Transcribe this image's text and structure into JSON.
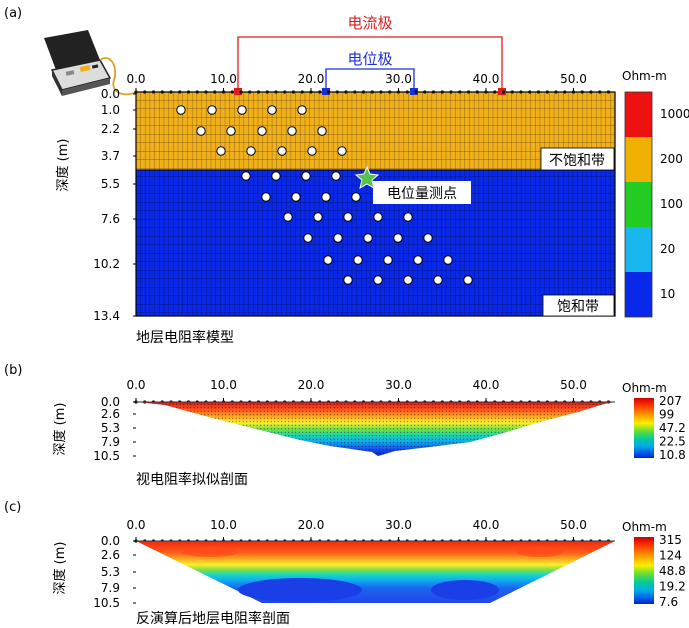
{
  "panel_a": {
    "label": "(a)",
    "current_electrode_label": "电流极",
    "potential_electrode_label": "电位极",
    "x_ticks": [
      "0.0",
      "10.0",
      "20.0",
      "30.0",
      "40.0",
      "50.0"
    ],
    "y_ticks": [
      "0.0",
      "1.0",
      "2.2",
      "3.7",
      "5.5",
      "7.6",
      "10.2",
      "13.4"
    ],
    "ylabel": "深度 (m)",
    "unsaturated_label": "不饱和带",
    "saturated_label": "饱和带",
    "measure_point_label": "电位量测点",
    "caption": "地层电阻率模型",
    "colorbar_unit": "Ohm-m",
    "colorbar_ticks": [
      "1000",
      "200",
      "100",
      "20",
      "10"
    ],
    "colorbar_colors": [
      "#ee1111",
      "#f0b000",
      "#22cc22",
      "#18b8ee",
      "#0a28e8"
    ],
    "layer_colors": {
      "unsaturated": "#f0b01c",
      "saturated": "#0a28e8"
    },
    "electrode_colors": {
      "current": "#e11b1b",
      "potential": "#1a30d8"
    }
  },
  "panel_b": {
    "label": "(b)",
    "x_ticks": [
      "0.0",
      "10.0",
      "20.0",
      "30.0",
      "40.0",
      "50.0"
    ],
    "y_ticks": [
      "0.0",
      "2.6",
      "5.3",
      "7.9",
      "10.5"
    ],
    "ylabel": "深度 (m)",
    "caption": "视电阻率拟似剖面",
    "colorbar_unit": "Ohm-m",
    "colorbar_ticks": [
      "207",
      "99",
      "47.2",
      "22.5",
      "10.8"
    ]
  },
  "panel_c": {
    "label": "(c)",
    "x_ticks": [
      "0.0",
      "10.0",
      "20.0",
      "30.0",
      "40.0",
      "50.0"
    ],
    "y_ticks": [
      "0.0",
      "2.6",
      "5.3",
      "7.9",
      "10.5"
    ],
    "ylabel": "深度 (m)",
    "caption": "反演算后地层电阻率剖面",
    "colorbar_unit": "Ohm-m",
    "colorbar_ticks": [
      "315",
      "124",
      "48.8",
      "19.2",
      "7.6"
    ]
  }
}
